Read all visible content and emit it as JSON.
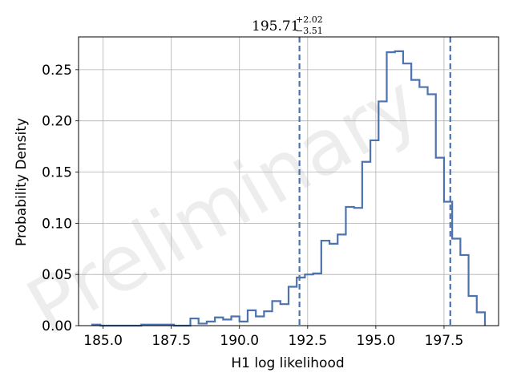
{
  "chart_data": {
    "type": "histogram",
    "title": {
      "value": "195.71",
      "upper": "+2.02",
      "lower": "−3.51"
    },
    "xlabel": "H1 log likelihood",
    "ylabel": "Probability Density",
    "watermark": "Preliminary",
    "xlim": [
      184.1,
      199.5
    ],
    "ylim": [
      0,
      0.282
    ],
    "xticks": [
      185.0,
      187.5,
      190.0,
      192.5,
      195.0,
      197.5
    ],
    "xtick_labels": [
      "185.0",
      "187.5",
      "190.0",
      "192.5",
      "195.0",
      "197.5"
    ],
    "yticks": [
      0.0,
      0.05,
      0.1,
      0.15,
      0.2,
      0.25
    ],
    "ytick_labels": [
      "0.00",
      "0.05",
      "0.10",
      "0.15",
      "0.20",
      "0.25"
    ],
    "grid": true,
    "color": "#4c72b0",
    "bin_edges": [
      184.6,
      184.9,
      185.2,
      185.5,
      185.8,
      186.1,
      186.4,
      186.7,
      187.0,
      187.3,
      187.6,
      187.9,
      188.2,
      188.5,
      188.8,
      189.1,
      189.4,
      189.7,
      190.0,
      190.3,
      190.6,
      190.9,
      191.2,
      191.5,
      191.8,
      192.1,
      192.4,
      192.7,
      193.0,
      193.3,
      193.6,
      193.9,
      194.2,
      194.5,
      194.8,
      195.1,
      195.4,
      195.7,
      196.0,
      196.3,
      196.6,
      196.9,
      197.2,
      197.5,
      197.8,
      198.1,
      198.4,
      198.7,
      199.0
    ],
    "densities": [
      0.001,
      0.0,
      0.0,
      0.0,
      0.0,
      0.0,
      0.001,
      0.001,
      0.001,
      0.001,
      0.0,
      0.0,
      0.007,
      0.002,
      0.004,
      0.008,
      0.006,
      0.009,
      0.004,
      0.015,
      0.009,
      0.014,
      0.024,
      0.021,
      0.038,
      0.047,
      0.05,
      0.051,
      0.083,
      0.08,
      0.089,
      0.116,
      0.115,
      0.16,
      0.181,
      0.219,
      0.267,
      0.268,
      0.256,
      0.24,
      0.233,
      0.226,
      0.164,
      0.121,
      0.085,
      0.069,
      0.029,
      0.013
    ],
    "vlines": [
      192.2,
      197.73
    ],
    "vline_style": "dashed"
  }
}
